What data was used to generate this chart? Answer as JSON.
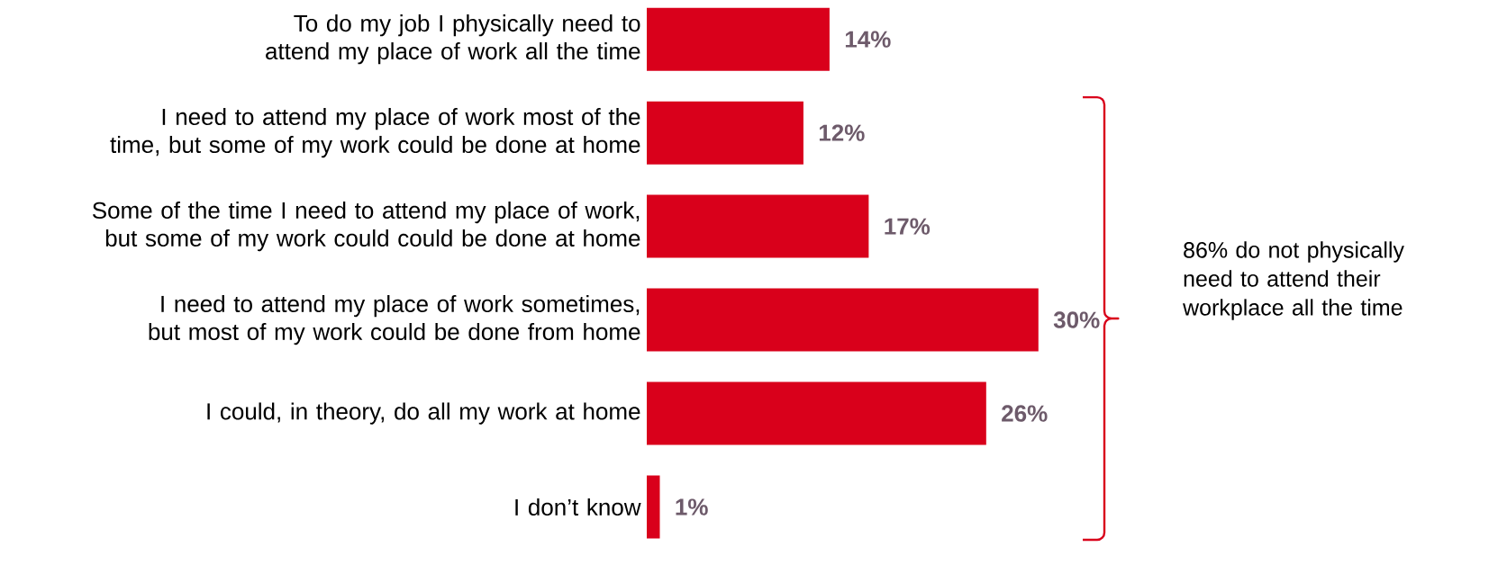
{
  "chart_data": {
    "type": "bar",
    "orientation": "horizontal",
    "categories": [
      "To do my job I physically need to attend my place of work all the time",
      "I need to attend my place of work most of the time, but some of my work could be done at home",
      "Some of the time I need to attend my place of work, but some of my work could could be done at home",
      "I need to attend my place of work sometimes, but most of my work could be done from home",
      "I could, in theory, do all my work at home",
      "I don’t know"
    ],
    "values": [
      14,
      12,
      17,
      30,
      26,
      1
    ],
    "value_labels": [
      "14%",
      "12%",
      "17%",
      "30%",
      "26%",
      "1%"
    ],
    "color": "#d9001b",
    "annotations": [
      "86% do not physically need to attend their workplace all the time"
    ]
  }
}
